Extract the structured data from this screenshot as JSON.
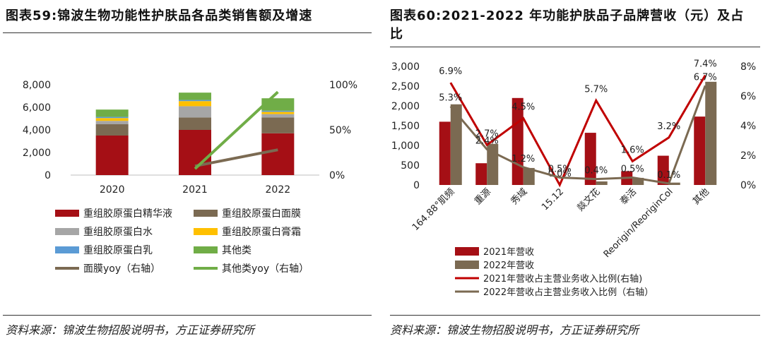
{
  "left": {
    "title": "图表59:锦波生物功能性护肤品各品类销售额及增速",
    "source": "资料来源：锦波生物招股说明书，方正证券研究所"
  },
  "right": {
    "title": "图表60:2021-2022 年功能护肤品子品牌营收（元）及占比",
    "source": "资料来源：锦波生物招股说明书，方正证券研究所"
  },
  "colors": {
    "dark_red": "#a50f15",
    "brown": "#7b6a52",
    "gray": "#a6a6a6",
    "yellow": "#ffc000",
    "blue": "#5b9bd5",
    "green": "#70ad47",
    "red_line": "#c00000"
  },
  "chart_data": [
    {
      "type": "bar",
      "stacked": true,
      "categories": [
        "2020",
        "2021",
        "2022"
      ],
      "ylim": [
        0,
        8000
      ],
      "y_ticks": [
        "0",
        "2,000",
        "4,000",
        "6,000",
        "8,000"
      ],
      "y2lim": [
        0,
        100
      ],
      "y2_ticks": [
        "0%",
        "50%",
        "100%"
      ],
      "grid": false,
      "legend_position": "bottom",
      "series": [
        {
          "name": "重组胶原蛋白精华液",
          "color": "#a50f15",
          "values": [
            3500,
            4000,
            3700
          ]
        },
        {
          "name": "重组胶原蛋白面膜",
          "color": "#7b6a52",
          "values": [
            1000,
            1100,
            1400
          ]
        },
        {
          "name": "重组胶原蛋白水",
          "color": "#a6a6a6",
          "values": [
            300,
            1000,
            300
          ]
        },
        {
          "name": "重组胶原蛋白膏霜",
          "color": "#ffc000",
          "values": [
            250,
            450,
            200
          ]
        },
        {
          "name": "重组胶原蛋白乳",
          "color": "#5b9bd5",
          "values": [
            100,
            100,
            100
          ]
        },
        {
          "name": "其他类",
          "color": "#70ad47",
          "values": [
            650,
            650,
            1100
          ]
        }
      ],
      "lines": [
        {
          "name": "面膜yoy（右轴）",
          "color": "#7b6a52",
          "axis": "right",
          "x": [
            "2021",
            "2022"
          ],
          "values": [
            10,
            28
          ]
        },
        {
          "name": "其他类yoy（右轴）",
          "color": "#70ad47",
          "axis": "right",
          "x": [
            "2021",
            "2022"
          ],
          "values": [
            7,
            92
          ]
        }
      ]
    },
    {
      "type": "bar",
      "categories": [
        "164.88°肌频",
        "重源",
        "秀域",
        "15.12",
        "燚文花",
        "泰活",
        "Reorigin/ReoriginCol",
        "其他"
      ],
      "ylim": [
        0,
        3000
      ],
      "y_ticks": [
        "0",
        "500",
        "1,000",
        "1,500",
        "2,000",
        "2,500",
        "3,000"
      ],
      "y2lim": [
        0,
        8
      ],
      "y2_ticks": [
        "0%",
        "2%",
        "4%",
        "6%",
        "8%"
      ],
      "grid": false,
      "legend_position": "bottom",
      "series": [
        {
          "name": "2021年营收",
          "color": "#a50f15",
          "values": [
            1600,
            550,
            2200,
            0,
            1320,
            350,
            740,
            1730
          ]
        },
        {
          "name": "2022年营收",
          "color": "#7b6a52",
          "values": [
            2040,
            1040,
            430,
            0,
            90,
            180,
            60,
            2610
          ]
        }
      ],
      "lines": [
        {
          "name": "2021年营收占主营业务收入比例(右轴)",
          "color": "#c00000",
          "axis": "right",
          "values": [
            6.9,
            2.7,
            4.5,
            0.0,
            5.7,
            1.6,
            3.2,
            7.4
          ],
          "labels": [
            "6.9%",
            "2.7%",
            "4.5%",
            "0.0%",
            "5.7%",
            "1.6%",
            "3.2%",
            "7.4%"
          ]
        },
        {
          "name": "2022年营收占主营业务收入比例（右轴）",
          "color": "#7b6a52",
          "axis": "right",
          "values": [
            5.3,
            2.4,
            1.2,
            0.5,
            0.4,
            0.5,
            0.1,
            6.7
          ],
          "labels": [
            "5.3%",
            "2.4%",
            "1.2%",
            "0.5%",
            "0.4%",
            "0.5%",
            "0.1%",
            "6.7%"
          ]
        }
      ]
    }
  ]
}
